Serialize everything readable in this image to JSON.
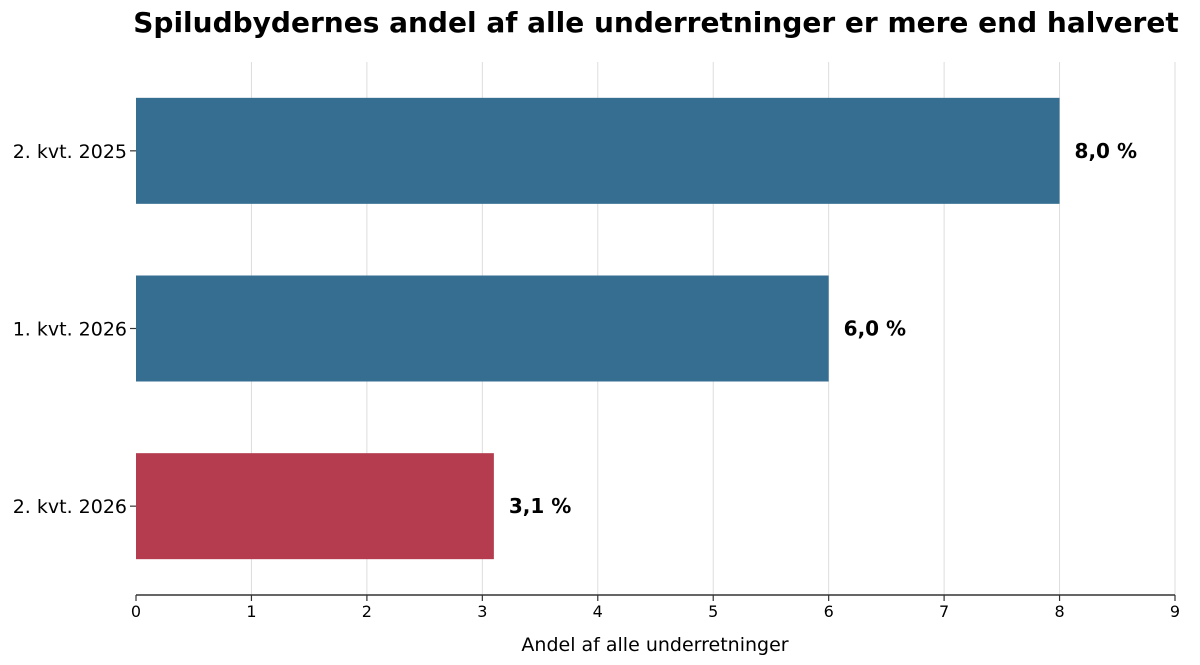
{
  "chart_data": {
    "type": "bar",
    "orientation": "horizontal",
    "title": "Spiludbydernes andel af alle underretninger er mere end halveret",
    "xlabel": "Andel af alle underretninger",
    "ylabel": "",
    "xlim": [
      0,
      9
    ],
    "x_ticks": [
      "0",
      "1",
      "2",
      "3",
      "4",
      "5",
      "6",
      "7",
      "8",
      "9"
    ],
    "grid": "vertical",
    "categories": [
      "2. kvt. 2025",
      "1. kvt. 2026",
      "2. kvt. 2026"
    ],
    "values": [
      8.0,
      6.0,
      3.1
    ],
    "data_labels": [
      "8,0 %",
      "6,0 %",
      "3,1 %"
    ],
    "colors": [
      "#366e91",
      "#366e91",
      "#b53c4f"
    ],
    "grid_color": "#dddddd",
    "axis_color": "#333333"
  }
}
